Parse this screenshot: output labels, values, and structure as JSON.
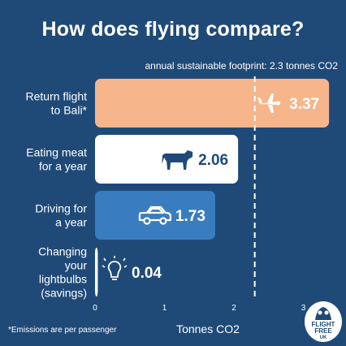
{
  "title": "How does flying compare?",
  "annotation": "annual sustainable footprint: 2.3 tonnes CO2",
  "footnote": "*Emissions are per passenger",
  "logo": {
    "line1": "FLIGHT",
    "line2": "FREE",
    "line3": "UK"
  },
  "chart_data": {
    "type": "bar",
    "orientation": "horizontal",
    "categories": [
      [
        "Return flight",
        "to Bali*"
      ],
      [
        "Eating meat",
        "for a year"
      ],
      [
        "Driving for",
        "a year"
      ],
      [
        "Changing",
        "your",
        "lightbulbs",
        "(savings)"
      ]
    ],
    "values": [
      3.37,
      2.06,
      1.73,
      0.04
    ],
    "value_labels": [
      "3.37",
      "2.06",
      "1.73",
      "0.04"
    ],
    "icons": [
      "airplane-icon",
      "cow-icon",
      "car-icon",
      "lightbulb-icon"
    ],
    "bar_colors": [
      "#f6b58b",
      "#ffffff",
      "#3a7cc0",
      "#ffffff"
    ],
    "value_colors": [
      "#ffffff",
      "#1f4a78",
      "#ffffff",
      "#ffffff"
    ],
    "xlabel": "Tonnes CO2",
    "xlim": [
      0,
      3.4
    ],
    "xticks": [
      0,
      1,
      2,
      3
    ],
    "reference_line": {
      "value": 2.3,
      "style": "dashed",
      "color": "#ffffff"
    }
  }
}
